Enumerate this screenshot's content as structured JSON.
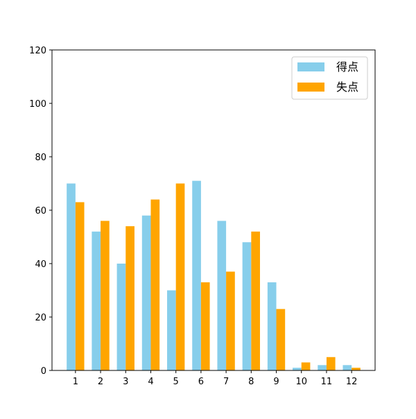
{
  "chart_data": {
    "type": "bar",
    "title": "",
    "xlabel": "",
    "ylabel": "",
    "categories": [
      "1",
      "2",
      "3",
      "4",
      "5",
      "6",
      "7",
      "8",
      "9",
      "10",
      "11",
      "12"
    ],
    "series": [
      {
        "name": "得点",
        "color": "#87ceeb",
        "values": [
          70,
          52,
          40,
          58,
          30,
          71,
          56,
          48,
          33,
          1,
          2,
          2
        ]
      },
      {
        "name": "失点",
        "color": "#ffa500",
        "values": [
          63,
          56,
          54,
          64,
          70,
          33,
          37,
          52,
          23,
          3,
          5,
          1
        ]
      }
    ],
    "ylim": [
      0,
      120
    ],
    "yticks": [
      "0",
      "20",
      "40",
      "60",
      "80",
      "100",
      "120"
    ],
    "legend": "top-right",
    "grid": false
  }
}
